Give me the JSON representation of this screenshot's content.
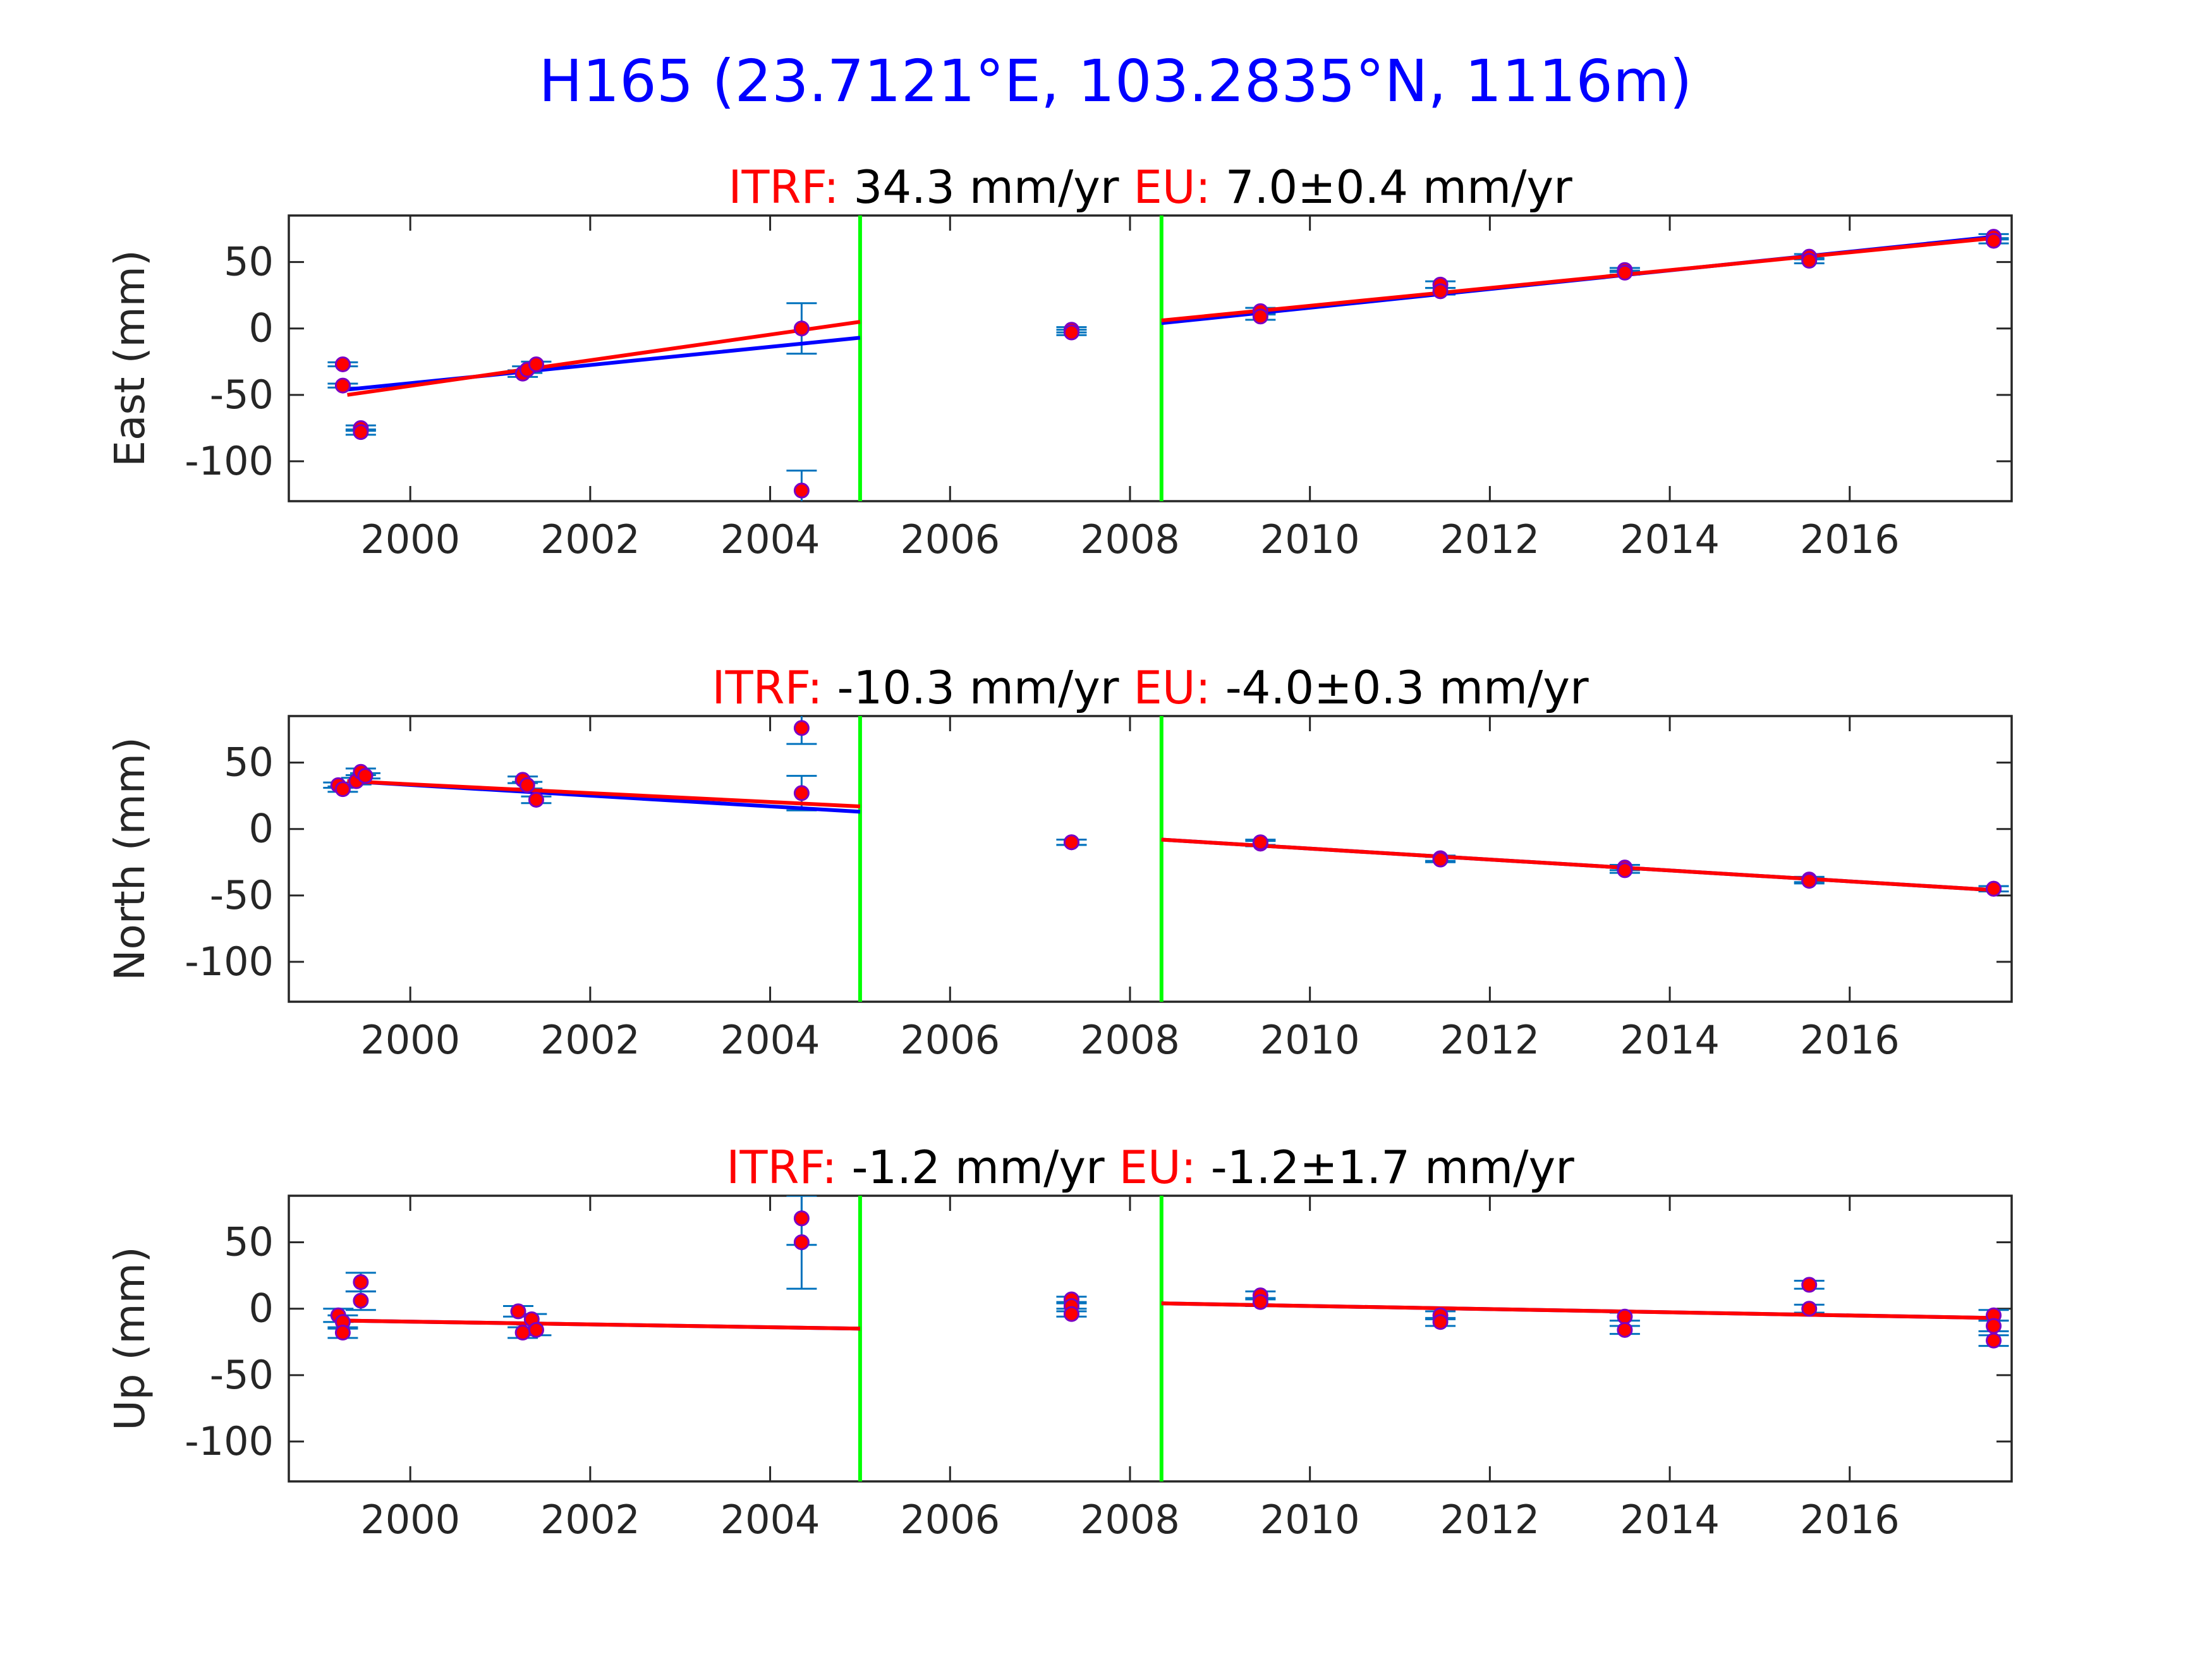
{
  "figure": {
    "title": "H165 (23.7121°E, 103.2835°N, 1116m)",
    "title_color": "#0000ff"
  },
  "colors": {
    "axes": "#262626",
    "label": "#262626",
    "prefix": "#ff0000",
    "value": "#000000",
    "data_point": "#ff0000",
    "data_point_edge": "#7a00c4",
    "errorbar": "#0072bd",
    "fit_model": "#0000ff",
    "fit_itrf": "#ff0000",
    "offset_line": "#00ff00"
  },
  "chart_data": [
    {
      "type": "scatter",
      "ylabel": "East (mm)",
      "header": {
        "itrf_label": "ITRF:",
        "itrf_value": "34.3 mm/yr",
        "eu_label": "EU:",
        "eu_value": "7.0±0.4 mm/yr"
      },
      "xlim": [
        1998.65,
        2017.8
      ],
      "ylim": [
        -130,
        85
      ],
      "xticks": [
        2000,
        2002,
        2004,
        2006,
        2008,
        2010,
        2012,
        2014,
        2016
      ],
      "xtick_labels": [
        "2000",
        "2002",
        "2004",
        "2006",
        "2008",
        "2010",
        "2012",
        "2014",
        "2016"
      ],
      "yticks": [
        50,
        0,
        -50,
        -100
      ],
      "ytick_labels": [
        "50",
        "0",
        "-50",
        "-100"
      ],
      "offsets": [
        2005.0,
        2008.35
      ],
      "points": [
        [
          1999.25,
          -27,
          1.5
        ],
        [
          1999.25,
          -43,
          1.5
        ],
        [
          1999.45,
          -75,
          2
        ],
        [
          1999.45,
          -78,
          2
        ],
        [
          2001.25,
          -34,
          2.5
        ],
        [
          2001.3,
          -31,
          2.5
        ],
        [
          2001.4,
          -27,
          2
        ],
        [
          2004.35,
          0,
          19
        ],
        [
          2004.35,
          -122,
          15
        ],
        [
          2007.35,
          -1,
          2
        ],
        [
          2007.35,
          -3,
          2
        ],
        [
          2009.45,
          13,
          2.5
        ],
        [
          2009.45,
          9,
          2.5
        ],
        [
          2011.45,
          33,
          2.5
        ],
        [
          2011.45,
          28,
          2.5
        ],
        [
          2013.5,
          44,
          1.5
        ],
        [
          2013.5,
          42,
          1.5
        ],
        [
          2015.55,
          54,
          2
        ],
        [
          2015.55,
          51,
          2
        ],
        [
          2017.6,
          69,
          2
        ],
        [
          2017.6,
          66,
          2
        ]
      ],
      "fit_model": [
        [
          [
            1999.3,
            -46
          ],
          [
            2005.0,
            -7
          ]
        ],
        [
          [
            2008.35,
            4
          ],
          [
            2017.6,
            69
          ]
        ]
      ],
      "fit_itrf": [
        [
          [
            1999.3,
            -50
          ],
          [
            2005.0,
            5
          ]
        ],
        [
          [
            2008.35,
            6
          ],
          [
            2017.6,
            68
          ]
        ]
      ]
    },
    {
      "type": "scatter",
      "ylabel": "North (mm)",
      "header": {
        "itrf_label": "ITRF:",
        "itrf_value": "-10.3 mm/yr",
        "eu_label": "EU:",
        "eu_value": "-4.0±0.3 mm/yr"
      },
      "xlim": [
        1998.65,
        2017.8
      ],
      "ylim": [
        -130,
        85
      ],
      "xticks": [
        2000,
        2002,
        2004,
        2006,
        2008,
        2010,
        2012,
        2014,
        2016
      ],
      "xtick_labels": [
        "2000",
        "2002",
        "2004",
        "2006",
        "2008",
        "2010",
        "2012",
        "2014",
        "2016"
      ],
      "yticks": [
        50,
        0,
        -50,
        -100
      ],
      "ytick_labels": [
        "50",
        "0",
        "-50",
        "-100"
      ],
      "offsets": [
        2005.0,
        2008.35
      ],
      "points": [
        [
          1999.2,
          33,
          2
        ],
        [
          1999.25,
          30,
          2
        ],
        [
          1999.4,
          36,
          2.5
        ],
        [
          1999.45,
          43,
          2.5
        ],
        [
          1999.5,
          40,
          2
        ],
        [
          2001.25,
          37,
          2.5
        ],
        [
          2001.3,
          33,
          2.5
        ],
        [
          2001.4,
          22,
          2.5
        ],
        [
          2004.35,
          76,
          12
        ],
        [
          2004.35,
          27,
          13
        ],
        [
          2007.35,
          -10,
          2
        ],
        [
          2007.35,
          -10,
          2
        ],
        [
          2009.45,
          -11,
          2
        ],
        [
          2009.45,
          -10,
          2
        ],
        [
          2011.45,
          -22,
          2
        ],
        [
          2011.45,
          -23,
          2
        ],
        [
          2013.5,
          -29,
          2
        ],
        [
          2013.5,
          -31,
          2
        ],
        [
          2015.55,
          -38,
          2
        ],
        [
          2015.55,
          -39,
          2
        ],
        [
          2017.6,
          -45,
          2
        ],
        [
          2017.6,
          -45,
          2
        ]
      ],
      "fit_model": [
        [
          [
            1999.3,
            36
          ],
          [
            2005.0,
            13
          ]
        ],
        [
          [
            2008.35,
            -8
          ],
          [
            2017.6,
            -46
          ]
        ]
      ],
      "fit_itrf": [
        [
          [
            1999.3,
            36
          ],
          [
            2005.0,
            17
          ]
        ],
        [
          [
            2008.35,
            -8
          ],
          [
            2017.6,
            -46
          ]
        ]
      ]
    },
    {
      "type": "scatter",
      "ylabel": "Up (mm)",
      "header": {
        "itrf_label": "ITRF:",
        "itrf_value": "-1.2 mm/yr",
        "eu_label": "EU:",
        "eu_value": "-1.2±1.7 mm/yr"
      },
      "xlim": [
        1998.65,
        2017.8
      ],
      "ylim": [
        -130,
        85
      ],
      "xticks": [
        2000,
        2002,
        2004,
        2006,
        2008,
        2010,
        2012,
        2014,
        2016
      ],
      "xtick_labels": [
        "2000",
        "2002",
        "2004",
        "2006",
        "2008",
        "2010",
        "2012",
        "2014",
        "2016"
      ],
      "yticks": [
        50,
        0,
        -50,
        -100
      ],
      "ytick_labels": [
        "50",
        "0",
        "-50",
        "-100"
      ],
      "offsets": [
        2005.0,
        2008.35
      ],
      "points": [
        [
          1999.2,
          -5,
          5
        ],
        [
          1999.25,
          -10,
          5
        ],
        [
          1999.25,
          -18,
          4
        ],
        [
          1999.45,
          20,
          7
        ],
        [
          1999.45,
          6,
          7
        ],
        [
          2001.2,
          -2,
          4
        ],
        [
          2001.25,
          -18,
          4
        ],
        [
          2001.35,
          -8,
          4
        ],
        [
          2001.4,
          -16,
          4
        ],
        [
          2004.35,
          68,
          20
        ],
        [
          2004.35,
          50,
          35
        ],
        [
          2007.35,
          7,
          2
        ],
        [
          2007.35,
          2,
          2
        ],
        [
          2007.35,
          -4,
          2
        ],
        [
          2009.45,
          10,
          3
        ],
        [
          2009.45,
          5,
          3
        ],
        [
          2011.45,
          -5,
          3
        ],
        [
          2011.45,
          -10,
          3
        ],
        [
          2013.5,
          -6,
          3
        ],
        [
          2013.5,
          -16,
          3
        ],
        [
          2015.55,
          18,
          3
        ],
        [
          2015.55,
          0,
          3
        ],
        [
          2017.6,
          -5,
          4
        ],
        [
          2017.6,
          -13,
          4
        ],
        [
          2017.6,
          -24,
          4
        ]
      ],
      "fit_model": [
        [
          [
            1999.3,
            -9
          ],
          [
            2005.0,
            -15
          ]
        ],
        [
          [
            2008.35,
            4
          ],
          [
            2017.6,
            -7
          ]
        ]
      ],
      "fit_itrf": [
        [
          [
            1999.3,
            -9
          ],
          [
            2005.0,
            -15
          ]
        ],
        [
          [
            2008.35,
            4
          ],
          [
            2017.6,
            -7
          ]
        ]
      ]
    }
  ]
}
